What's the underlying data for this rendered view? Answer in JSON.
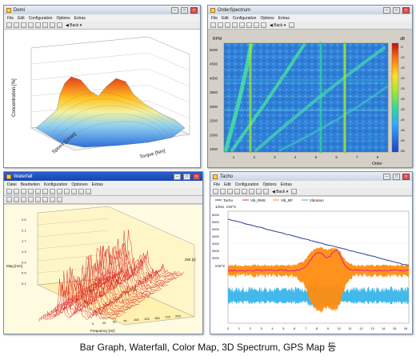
{
  "window_3d": {
    "title": "Demi",
    "menu": [
      "File",
      "Edit",
      "Configuration",
      "Options",
      "Extras"
    ],
    "ylabel": "Concentration [%]",
    "xlabel": "Torque [Nm]",
    "zlabel": "Speed [1/min]"
  },
  "window_order": {
    "title": "OrderSpectrum",
    "menu": [
      "File",
      "Edit",
      "Configuration",
      "Options",
      "Extras"
    ],
    "back_label": "Back",
    "y_unit": "RPM",
    "c_unit": "dB",
    "xlabel": "Order",
    "y_ticks": [
      "5000",
      "4500",
      "4000",
      "3500",
      "3000",
      "2500",
      "2000",
      "1500"
    ],
    "x_ticks": [
      "1",
      "2",
      "3",
      "4",
      "5",
      "6",
      "7",
      "8"
    ],
    "c_ticks": [
      "-5",
      "-10",
      "-15",
      "-20",
      "-25",
      "-30",
      "-35",
      "-40",
      "-45",
      "-50",
      "-55"
    ]
  },
  "window_waterfall": {
    "title": "Waterfall",
    "menu": [
      "Datei",
      "Bearbeiten",
      "Konfiguration",
      "Optionen",
      "Extras"
    ],
    "ylabel": "Mag [mm]",
    "xlabel": "Frequency [Hz]",
    "zlabel": "Zeit [s]",
    "y_ticks": [
      "2.5",
      "2.1",
      "1.7",
      "1.3",
      "0.9",
      "0.5",
      "0.1"
    ],
    "x_ticks": [
      "0",
      "25",
      "50",
      "75",
      "100",
      "125",
      "150",
      "175",
      "200"
    ]
  },
  "window_tacho": {
    "title": "Tacho",
    "menu": [
      "File",
      "Edit",
      "Configuration",
      "Options",
      "Extras"
    ],
    "back_label": "Back",
    "legend": [
      "Tacho",
      "Vib_RMS",
      "Vib_BP",
      "Vibration"
    ],
    "y_unit_top": "1/min",
    "y_unit_left": "m/s^2",
    "y_unit_mid": "m/s^2",
    "y_ticks_top": [
      "6000",
      "5500",
      "5000",
      "4500",
      "4000",
      "3500",
      "3000"
    ],
    "x_ticks": [
      "0",
      "1",
      "2",
      "3",
      "4",
      "5",
      "6",
      "7",
      "8",
      "9",
      "10",
      "11",
      "12",
      "13",
      "14",
      "15",
      "16"
    ]
  },
  "caption": "Bar Graph, Waterfall, Color Map, 3D Spectrum, GPS Map 등"
}
